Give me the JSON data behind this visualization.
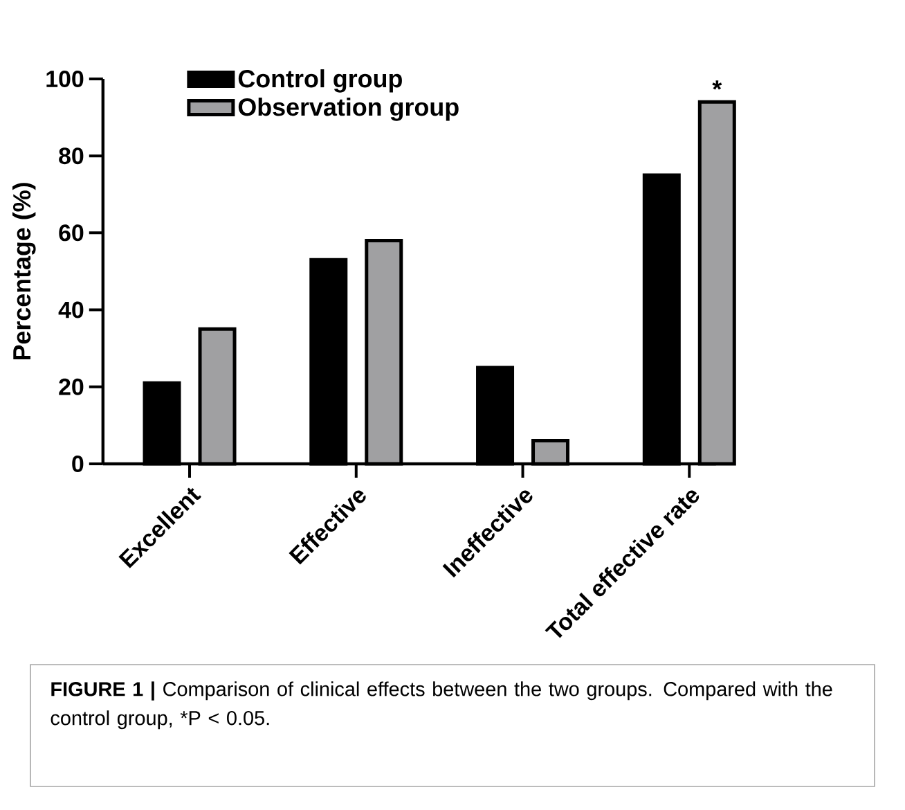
{
  "chart_data": {
    "type": "bar",
    "ylabel": "Percentage (%)",
    "categories": [
      "Excellent",
      "Effective",
      "Ineffective",
      "Total effective rate"
    ],
    "series": [
      {
        "name": "Control group",
        "color": "#000000",
        "values": [
          21,
          53,
          25,
          75
        ]
      },
      {
        "name": "Observation group",
        "color": "#a0a0a2",
        "values": [
          35,
          58,
          6,
          94
        ]
      }
    ],
    "ylim": [
      0,
      100
    ],
    "yticks": [
      0,
      20,
      40,
      60,
      80,
      100
    ],
    "grid": false,
    "legend": "top left",
    "annotations": [
      "*",
      "**FIGURE 1 |** Comparison of clinical effects between the two groups. Compared with the control group, *P < 0.05."
    ]
  }
}
